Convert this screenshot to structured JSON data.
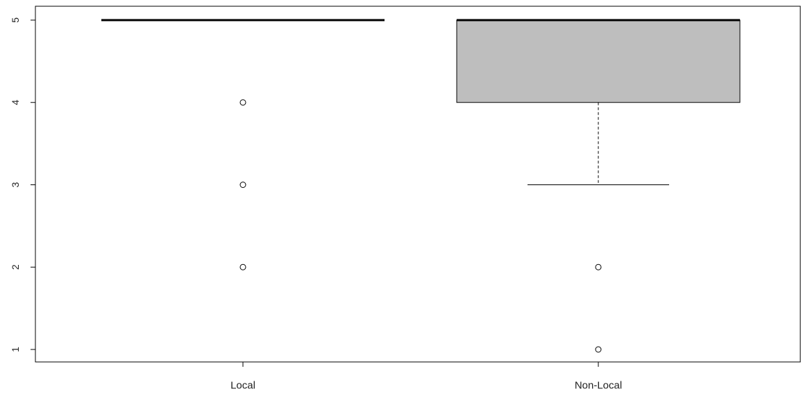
{
  "chart_data": {
    "type": "boxplot",
    "title": "",
    "xlabel": "",
    "ylabel": "",
    "ylim": [
      1,
      5
    ],
    "y_ticks": [
      "1",
      "2",
      "3",
      "4",
      "5"
    ],
    "grid": false,
    "box_fill": "#bebebe",
    "categories": [
      "Local",
      "Non-Local"
    ],
    "boxes": [
      {
        "category": "Local",
        "lower_whisker": 5,
        "q1": 5,
        "median": 5,
        "q3": 5,
        "upper_whisker": 5,
        "outliers": [
          4,
          3,
          2
        ]
      },
      {
        "category": "Non-Local",
        "lower_whisker": 3,
        "q1": 4,
        "median": 5,
        "q3": 5,
        "upper_whisker": 5,
        "outliers": [
          2,
          1
        ]
      }
    ]
  }
}
